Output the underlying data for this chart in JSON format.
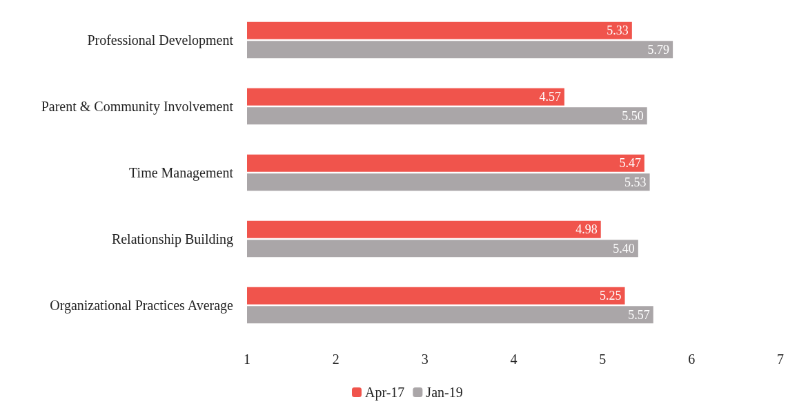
{
  "chart_data": {
    "type": "bar",
    "orientation": "horizontal",
    "categories": [
      "Professional Development",
      "Parent & Community Involvement",
      "Time Management",
      "Relationship Building",
      "Organizational Practices Average"
    ],
    "series": [
      {
        "name": "Apr-17",
        "color": "#f0544c",
        "values": [
          5.33,
          4.57,
          5.47,
          4.98,
          5.25
        ],
        "value_labels": [
          "5.33",
          "4.57",
          "5.47",
          "4.98",
          "5.25"
        ]
      },
      {
        "name": "Jan-19",
        "color": "#aaa6a8",
        "values": [
          5.79,
          5.5,
          5.53,
          5.4,
          5.57
        ],
        "value_labels": [
          "5.79",
          "5.50",
          "5.53",
          "5.40",
          "5.57"
        ]
      }
    ],
    "xlim": [
      1,
      7
    ],
    "xticks": [
      1,
      2,
      3,
      4,
      5,
      6,
      7
    ],
    "grid": false,
    "legend": "bottom"
  }
}
